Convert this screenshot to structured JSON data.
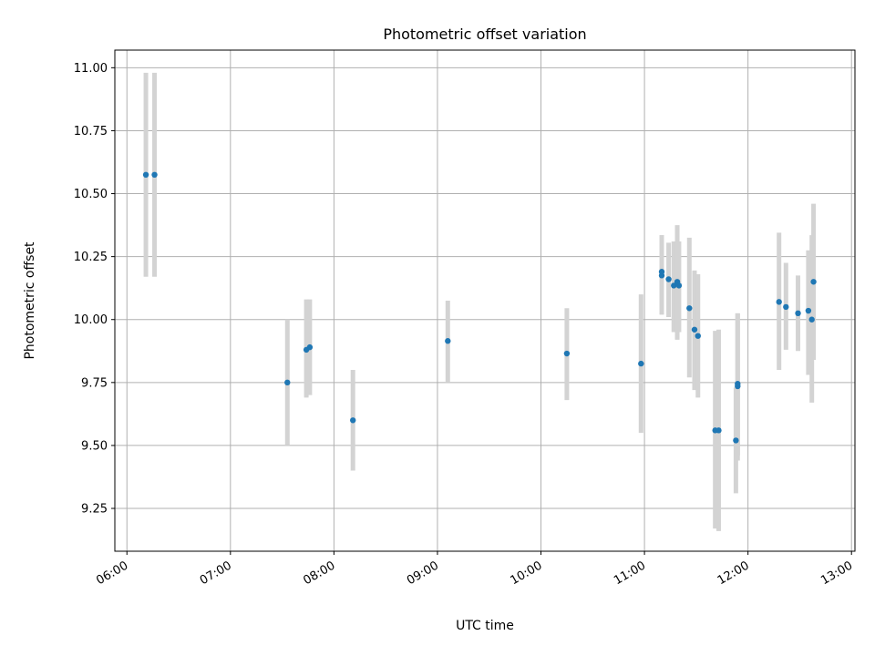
{
  "chart_data": {
    "type": "scatter",
    "title": "Photometric offset variation",
    "xlabel": "UTC time",
    "ylabel": "Photometric offset",
    "xlim": [
      "05:53",
      "13:02"
    ],
    "ylim": [
      9.08,
      11.07
    ],
    "x_ticks": [
      "06:00",
      "07:00",
      "08:00",
      "09:00",
      "10:00",
      "11:00",
      "12:00",
      "13:00"
    ],
    "y_ticks": [
      "9.25",
      "9.50",
      "9.75",
      "10.00",
      "10.25",
      "10.50",
      "10.75",
      "11.00"
    ],
    "grid": true,
    "colors": {
      "point": "#1f77b4",
      "errorbar": "#d3d3d3",
      "grid": "#b0b0b0"
    },
    "points": [
      {
        "x": "06:11",
        "y": 10.575,
        "y_low": 10.17,
        "y_high": 10.98
      },
      {
        "x": "06:16",
        "y": 10.575,
        "y_low": 10.17,
        "y_high": 10.98
      },
      {
        "x": "07:33",
        "y": 9.75,
        "y_low": 9.5,
        "y_high": 10.0
      },
      {
        "x": "07:44",
        "y": 9.88,
        "y_low": 9.69,
        "y_high": 10.08
      },
      {
        "x": "07:46",
        "y": 9.89,
        "y_low": 9.7,
        "y_high": 10.08
      },
      {
        "x": "08:11",
        "y": 9.6,
        "y_low": 9.4,
        "y_high": 9.8
      },
      {
        "x": "09:06",
        "y": 9.915,
        "y_low": 9.75,
        "y_high": 10.075
      },
      {
        "x": "10:15",
        "y": 9.865,
        "y_low": 9.68,
        "y_high": 10.045
      },
      {
        "x": "10:58",
        "y": 9.825,
        "y_low": 9.55,
        "y_high": 10.1
      },
      {
        "x": "11:10",
        "y": 10.175,
        "y_low": 10.02,
        "y_high": 10.335
      },
      {
        "x": "11:10",
        "y": 10.19,
        "y_low": 10.02,
        "y_high": 10.335
      },
      {
        "x": "11:14",
        "y": 10.16,
        "y_low": 10.01,
        "y_high": 10.305
      },
      {
        "x": "11:17",
        "y": 10.135,
        "y_low": 9.95,
        "y_high": 10.31
      },
      {
        "x": "11:19",
        "y": 10.15,
        "y_low": 9.92,
        "y_high": 10.375
      },
      {
        "x": "11:20",
        "y": 10.135,
        "y_low": 9.95,
        "y_high": 10.31
      },
      {
        "x": "11:26",
        "y": 10.045,
        "y_low": 9.77,
        "y_high": 10.325
      },
      {
        "x": "11:29",
        "y": 9.96,
        "y_low": 9.72,
        "y_high": 10.195
      },
      {
        "x": "11:31",
        "y": 9.935,
        "y_low": 9.69,
        "y_high": 10.18
      },
      {
        "x": "11:41",
        "y": 9.56,
        "y_low": 9.17,
        "y_high": 9.955
      },
      {
        "x": "11:43",
        "y": 9.56,
        "y_low": 9.16,
        "y_high": 9.96
      },
      {
        "x": "11:53",
        "y": 9.52,
        "y_low": 9.31,
        "y_high": 9.73
      },
      {
        "x": "11:54",
        "y": 9.735,
        "y_low": 9.44,
        "y_high": 10.025
      },
      {
        "x": "11:54",
        "y": 9.745,
        "y_low": 9.46,
        "y_high": 10.025
      },
      {
        "x": "12:18",
        "y": 10.07,
        "y_low": 9.8,
        "y_high": 10.345
      },
      {
        "x": "12:22",
        "y": 10.05,
        "y_low": 9.88,
        "y_high": 10.225
      },
      {
        "x": "12:29",
        "y": 10.025,
        "y_low": 9.875,
        "y_high": 10.175
      },
      {
        "x": "12:35",
        "y": 10.035,
        "y_low": 9.78,
        "y_high": 10.275
      },
      {
        "x": "12:37",
        "y": 10.0,
        "y_low": 9.67,
        "y_high": 10.335
      },
      {
        "x": "12:38",
        "y": 10.15,
        "y_low": 9.84,
        "y_high": 10.46
      }
    ]
  }
}
